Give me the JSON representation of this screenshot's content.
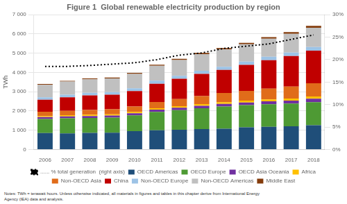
{
  "chart_data": {
    "type": "bar",
    "title": "Figure 1  Global renewable electricity production by region",
    "ylabel": "TWh",
    "categories": [
      2006,
      2007,
      2008,
      2009,
      2010,
      2011,
      2012,
      2013,
      2014,
      2015,
      2016,
      2017,
      2018
    ],
    "stacked": true,
    "grid": true,
    "legend": "bottom",
    "series": [
      {
        "name": "OECD Americas",
        "color": "#1f4e79",
        "type": "bar",
        "values": [
          850,
          830,
          860,
          870,
          950,
          1000,
          1020,
          1060,
          1080,
          1150,
          1180,
          1200,
          1260
        ]
      },
      {
        "name": "OECD Europe",
        "color": "#4e9a34",
        "type": "bar",
        "values": [
          730,
          790,
          780,
          780,
          820,
          950,
          1020,
          1080,
          1150,
          1150,
          1170,
          1180,
          1200
        ]
      },
      {
        "name": "OECD Asia Oceania",
        "color": "#7030a0",
        "type": "bar",
        "values": [
          100,
          100,
          100,
          110,
          110,
          120,
          130,
          130,
          140,
          140,
          150,
          160,
          180
        ]
      },
      {
        "name": "Africa",
        "color": "#ffc000",
        "type": "bar",
        "values": [
          60,
          60,
          65,
          70,
          70,
          75,
          80,
          85,
          90,
          95,
          100,
          110,
          115
        ]
      },
      {
        "name": "Non-OECD Asia",
        "color": "#e06c1a",
        "type": "bar",
        "values": [
          220,
          230,
          250,
          260,
          280,
          320,
          370,
          420,
          470,
          510,
          560,
          620,
          680
        ]
      },
      {
        "name": "China",
        "color": "#c00000",
        "type": "bar",
        "values": [
          620,
          700,
          750,
          750,
          800,
          950,
          1050,
          1150,
          1200,
          1350,
          1480,
          1580,
          1700
        ]
      },
      {
        "name": "Non-OECD Europe",
        "color": "#9dc3e6",
        "type": "bar",
        "values": [
          130,
          135,
          140,
          140,
          145,
          155,
          160,
          165,
          165,
          170,
          175,
          180,
          185
        ]
      },
      {
        "name": "Non-OECD Americas",
        "color": "#c0c0c0",
        "type": "bar",
        "values": [
          650,
          680,
          700,
          710,
          750,
          780,
          820,
          860,
          900,
          900,
          940,
          980,
          1000
        ]
      },
      {
        "name": "Middle East",
        "color": "#843c0c",
        "type": "bar",
        "values": [
          40,
          40,
          45,
          45,
          50,
          55,
          60,
          65,
          70,
          75,
          85,
          90,
          100
        ]
      },
      {
        "name": "...... % total generation  (right axis)",
        "color": "#000000",
        "type": "line",
        "line_style": "dotted",
        "axis": "y2",
        "values": [
          18.5,
          18.5,
          18.7,
          19.0,
          19.3,
          20.0,
          21.0,
          21.5,
          22.5,
          23.0,
          23.5,
          24.5,
          25.5
        ]
      }
    ],
    "ylim": [
      0,
      7000
    ],
    "yticks": [
      0,
      {
        "value": 1000,
        "label": "1 000"
      },
      {
        "value": 2000,
        "label": "2 000"
      },
      {
        "value": 3000,
        "label": "3 000"
      },
      {
        "value": 4000,
        "label": "4 000"
      },
      {
        "value": 5000,
        "label": "5 000"
      },
      {
        "value": 6000,
        "label": "6 000"
      },
      {
        "value": 7000,
        "label": "7 000"
      }
    ],
    "y2lim": [
      0,
      30
    ],
    "y2ticks": [
      {
        "value": 0,
        "label": "0%"
      },
      {
        "value": 5,
        "label": "5%"
      },
      {
        "value": 10,
        "label": "10%"
      },
      {
        "value": 15,
        "label": "15%"
      },
      {
        "value": 20,
        "label": "20%"
      },
      {
        "value": 25,
        "label": "25%"
      },
      {
        "value": 30,
        "label": "30%"
      }
    ],
    "annotations": [
      "Notes: TWh = terawatt hours. Unless otherwise indicated, all materials in figures and tables in this chapter derive from International Energy",
      "Agency (IEA) data and analysis."
    ]
  }
}
